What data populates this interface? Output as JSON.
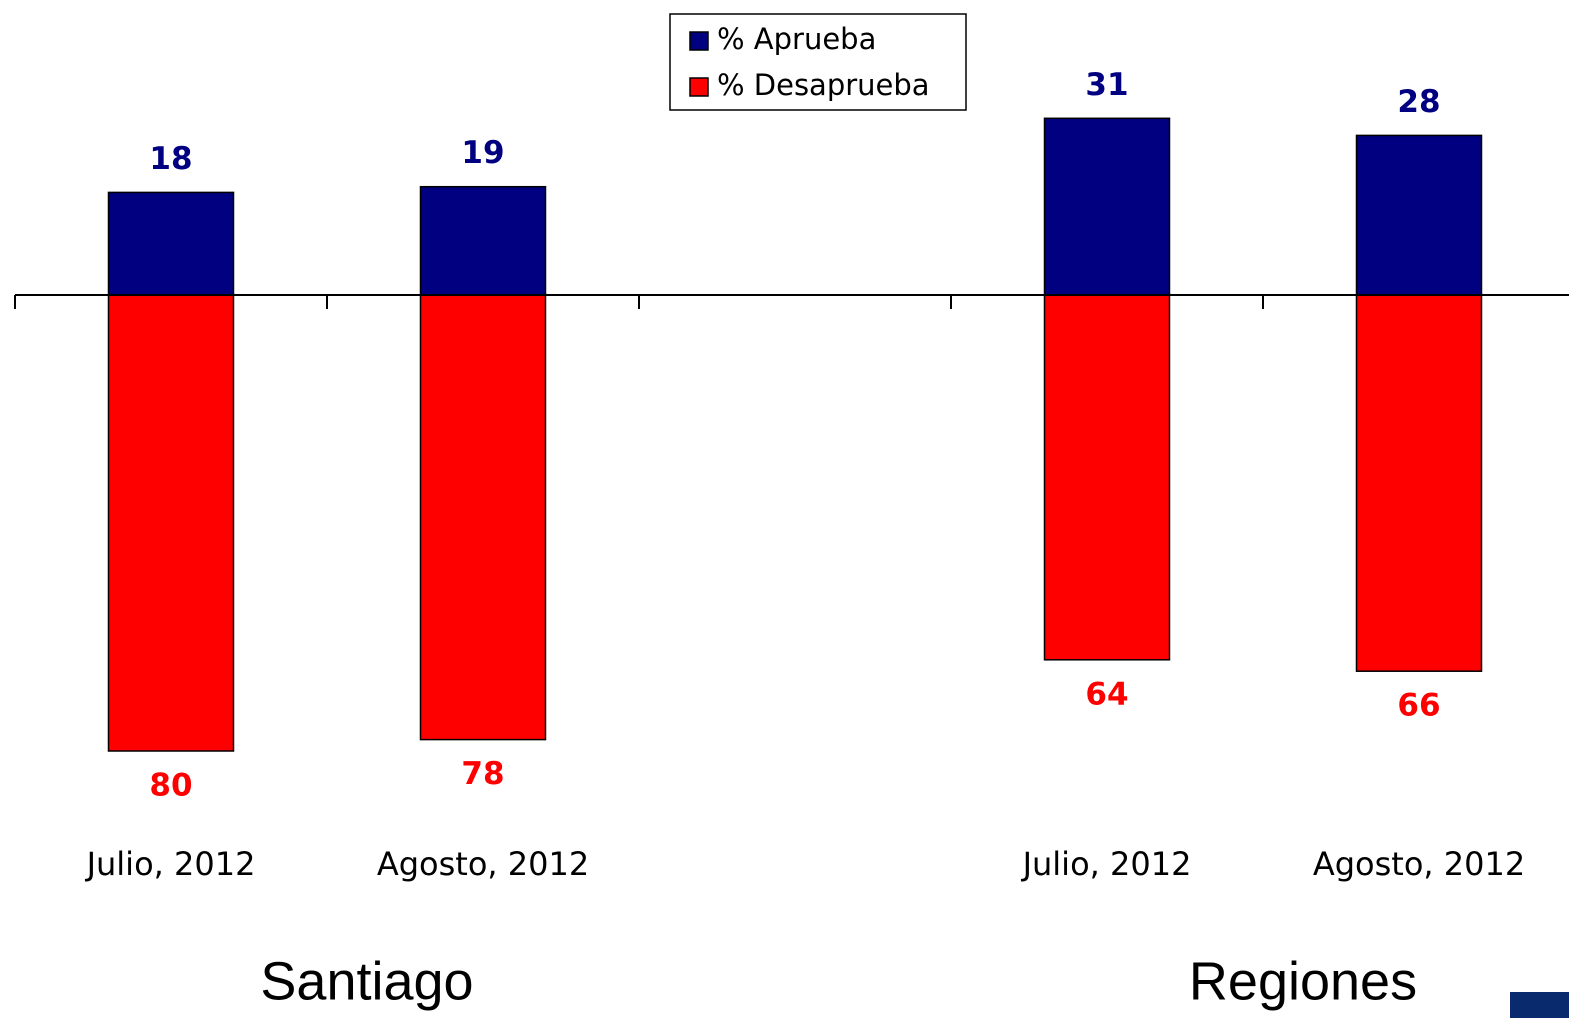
{
  "chart_data": {
    "type": "bar",
    "categories": [
      "Julio, 2012",
      "Agosto, 2012",
      null,
      "Julio, 2012",
      "Agosto, 2012"
    ],
    "groups": [
      "Santiago",
      "Regiones"
    ],
    "series": [
      {
        "name": "% Aprueba",
        "color": "#000080",
        "values": [
          18,
          19,
          null,
          31,
          28
        ]
      },
      {
        "name": "% Desaprueba",
        "color": "#ff0000",
        "values": [
          -80,
          -78,
          null,
          -64,
          -66
        ],
        "value_labels": [
          "80",
          "78",
          null,
          "64",
          "66"
        ]
      }
    ],
    "ylim": [
      -85,
      45
    ]
  }
}
